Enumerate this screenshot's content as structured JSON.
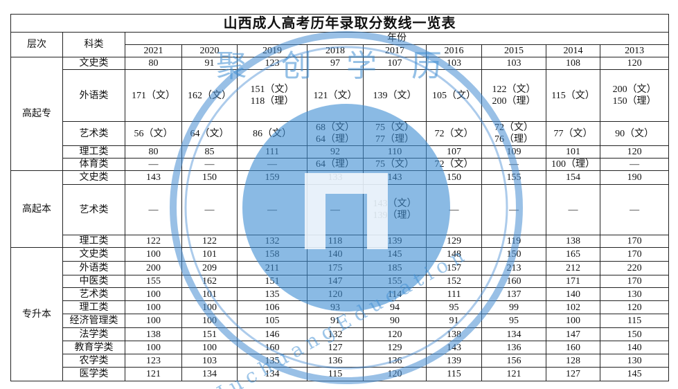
{
  "title": "山西成人高考历年录取分数线一览表",
  "header": {
    "level": "层次",
    "subject": "科类",
    "year_group": "年份",
    "years": [
      "2021",
      "2020",
      "2019",
      "2018",
      "2017",
      "2016",
      "2015",
      "2014",
      "2013"
    ]
  },
  "groups": [
    {
      "level": "高起专",
      "rows": [
        {
          "subject": "文史类",
          "cells": [
            "80",
            "91",
            "123",
            "97",
            "107",
            "103",
            "103",
            "108",
            "120"
          ]
        },
        {
          "subject": "外语类",
          "cells": [
            "171（文）",
            "162（文）",
            "151（文）\n118（理）",
            "121（文）",
            "139（文）",
            "105（文）",
            "122（文）\n200（理）",
            "115（文）",
            "200（文）\n150（理）"
          ]
        },
        {
          "subject": "艺术类",
          "cells": [
            "56（文）",
            "64（文）",
            "86（文）",
            "68（文）\n64（理）",
            "75（文）\n77（理）",
            "72（文）",
            "72（文）\n76（理）",
            "77（文）",
            "90（文）"
          ]
        },
        {
          "subject": "理工类",
          "cells": [
            "80",
            "85",
            "111",
            "92",
            "110",
            "107",
            "109",
            "101",
            "120"
          ]
        },
        {
          "subject": "体育类",
          "cells": [
            "—",
            "—",
            "—",
            "64（理）",
            "75（文）",
            "72（文）",
            "—",
            "100（理）",
            "—"
          ]
        }
      ]
    },
    {
      "level": "高起本",
      "rows": [
        {
          "subject": "文史类",
          "cells": [
            "143",
            "150",
            "159",
            "133",
            "143",
            "150",
            "155",
            "154",
            "190"
          ]
        },
        {
          "subject": "艺术类",
          "cells": [
            "—",
            "—",
            "—",
            "—",
            "143（文）\n139（理）",
            "—",
            "—",
            "—",
            "—"
          ]
        },
        {
          "subject": "理工类",
          "cells": [
            "122",
            "122",
            "132",
            "118",
            "139",
            "129",
            "119",
            "138",
            "170"
          ]
        }
      ]
    },
    {
      "level": "专升本",
      "rows": [
        {
          "subject": "文史类",
          "cells": [
            "100",
            "101",
            "158",
            "140",
            "145",
            "148",
            "150",
            "165",
            "170"
          ]
        },
        {
          "subject": "外语类",
          "cells": [
            "200",
            "209",
            "211",
            "175",
            "185",
            "157",
            "213",
            "212",
            "220"
          ]
        },
        {
          "subject": "中医类",
          "cells": [
            "155",
            "162",
            "151",
            "147",
            "155",
            "152",
            "160",
            "171",
            "170"
          ]
        },
        {
          "subject": "艺术类",
          "cells": [
            "100",
            "101",
            "135",
            "120",
            "114",
            "111",
            "137",
            "140",
            "130"
          ]
        },
        {
          "subject": "理工类",
          "cells": [
            "100",
            "100",
            "106",
            "93",
            "94",
            "95",
            "99",
            "102",
            "120"
          ]
        },
        {
          "subject": "经济管理类",
          "cells": [
            "100",
            "100",
            "105",
            "91",
            "90",
            "91",
            "95",
            "100",
            "115"
          ]
        },
        {
          "subject": "法学类",
          "cells": [
            "138",
            "151",
            "146",
            "132",
            "120",
            "138",
            "134",
            "147",
            "150"
          ]
        },
        {
          "subject": "教育学类",
          "cells": [
            "100",
            "100",
            "160",
            "127",
            "129",
            "143",
            "136",
            "160",
            "140"
          ]
        },
        {
          "subject": "农学类",
          "cells": [
            "123",
            "103",
            "135",
            "136",
            "136",
            "139",
            "156",
            "128",
            "130"
          ]
        },
        {
          "subject": "医学类",
          "cells": [
            "121",
            "134",
            "134",
            "115",
            "120",
            "115",
            "121",
            "127",
            "145"
          ]
        }
      ]
    }
  ],
  "watermark": {
    "brand": "聚创学历",
    "slogan": "JuchuangEducation"
  }
}
